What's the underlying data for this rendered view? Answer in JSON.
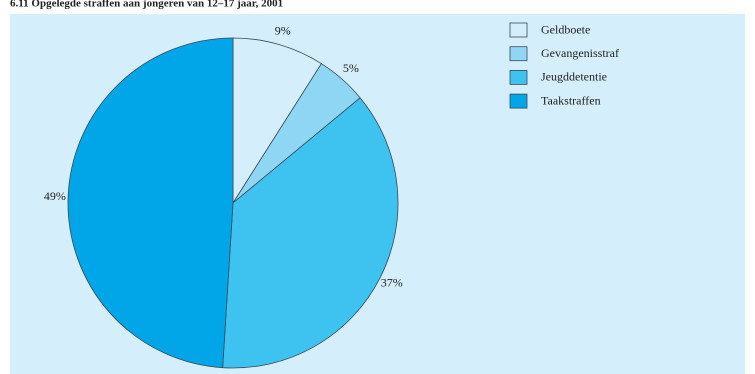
{
  "chart_data": {
    "type": "pie",
    "title": "6.11  Opgelegde straffen aan jongeren van 12–17 jaar, 2001",
    "categories": [
      "Geldboete",
      "Gevangenisstraf",
      "Jeugddetentie",
      "Taakstraffen"
    ],
    "values": [
      9,
      5,
      37,
      49
    ],
    "value_labels": [
      "9%",
      "5%",
      "37%",
      "49%"
    ],
    "colors": [
      "#d4eefb",
      "#8fd6f5",
      "#3ec3f0",
      "#00a6e8"
    ],
    "legend": "top-right"
  }
}
